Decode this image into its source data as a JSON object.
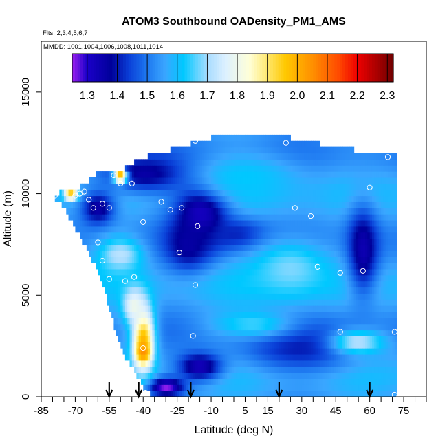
{
  "chart_data": {
    "type": "heatmap",
    "title": "ATOM3 Southbound OADensity_PM1_AMS",
    "flights_label": "Flts: 2,3,4,5,6,7",
    "mmdd_label": "MMDD: 1001,1004,1006,1008,1011,1014",
    "xlabel": "Latitude (deg N)",
    "ylabel": "Altitude (m)",
    "xlim": [
      -85,
      85
    ],
    "ylim": [
      0,
      17500
    ],
    "x_ticks": [
      -85,
      -70,
      -55,
      -40,
      -25,
      -10,
      5,
      15,
      30,
      45,
      60,
      75
    ],
    "x_tick_labels": [
      "-85",
      "-70",
      "-55",
      "-40",
      "-25",
      "-10",
      "5",
      "15",
      "30",
      "45",
      "60",
      "75"
    ],
    "y_ticks": [
      0,
      5000,
      10000,
      15000
    ],
    "y_tick_labels": [
      "0",
      "5000",
      "10000",
      "15000"
    ],
    "colorbar": {
      "range": [
        1.25,
        2.32
      ],
      "ticks": [
        1.3,
        1.4,
        1.5,
        1.6,
        1.7,
        1.8,
        1.9,
        2.0,
        2.1,
        2.2,
        2.3
      ],
      "tick_labels": [
        "1.3",
        "1.4",
        "1.5",
        "1.6",
        "1.7",
        "1.8",
        "1.9",
        "2.0",
        "2.1",
        "2.2",
        "2.3"
      ],
      "stops": [
        {
          "v": 1.25,
          "c": "#9A20F0"
        },
        {
          "v": 1.3,
          "c": "#1A00C8"
        },
        {
          "v": 1.38,
          "c": "#00009A"
        },
        {
          "v": 1.44,
          "c": "#0A40D8"
        },
        {
          "v": 1.5,
          "c": "#1E78F0"
        },
        {
          "v": 1.56,
          "c": "#3AA6FF"
        },
        {
          "v": 1.62,
          "c": "#00C8FF"
        },
        {
          "v": 1.7,
          "c": "#A8DCFF"
        },
        {
          "v": 1.76,
          "c": "#DCF0FF"
        },
        {
          "v": 1.84,
          "c": "#FFFFD8"
        },
        {
          "v": 1.9,
          "c": "#FFE870"
        },
        {
          "v": 1.96,
          "c": "#FFC800"
        },
        {
          "v": 2.05,
          "c": "#FF9000"
        },
        {
          "v": 2.14,
          "c": "#FF4800"
        },
        {
          "v": 2.2,
          "c": "#EE0000"
        },
        {
          "v": 2.32,
          "c": "#6E0000"
        }
      ]
    },
    "profile_markers_lat": [
      -55,
      -42,
      -19,
      20,
      60
    ],
    "altitude_envelope": [
      {
        "lat": -85,
        "top": 0
      },
      {
        "lat": -79,
        "top": 10000
      },
      {
        "lat": -70,
        "top": 10200
      },
      {
        "lat": -65,
        "top": 10600
      },
      {
        "lat": -60,
        "top": 11000
      },
      {
        "lat": -55,
        "top": 11100
      },
      {
        "lat": -50,
        "top": 11100
      },
      {
        "lat": -45,
        "top": 11500
      },
      {
        "lat": -40,
        "top": 11700
      },
      {
        "lat": -35,
        "top": 12000
      },
      {
        "lat": -25,
        "top": 12200
      },
      {
        "lat": -15,
        "top": 12600
      },
      {
        "lat": -5,
        "top": 12900
      },
      {
        "lat": 20,
        "top": 12900
      },
      {
        "lat": 30,
        "top": 12600
      },
      {
        "lat": 50,
        "top": 12200
      },
      {
        "lat": 65,
        "top": 11900
      },
      {
        "lat": 72,
        "top": 11900
      }
    ],
    "altitude_floor": [
      {
        "lat": -79,
        "bottom": 9800
      },
      {
        "lat": -75,
        "bottom": 9300
      },
      {
        "lat": -70,
        "bottom": 8300
      },
      {
        "lat": -65,
        "bottom": 7300
      },
      {
        "lat": -60,
        "bottom": 6200
      },
      {
        "lat": -56,
        "bottom": 4800
      },
      {
        "lat": -52,
        "bottom": 3200
      },
      {
        "lat": -48,
        "bottom": 1900
      },
      {
        "lat": -44,
        "bottom": 1300
      },
      {
        "lat": -40,
        "bottom": 500
      },
      {
        "lat": -36,
        "bottom": 0
      },
      {
        "lat": 72,
        "bottom": 0
      }
    ],
    "field_features": [
      {
        "kind": "background",
        "value": 1.55
      },
      {
        "kind": "blob",
        "lat": -38,
        "alt": 11000,
        "dlat": 20,
        "dalt": 900,
        "value": 1.35
      },
      {
        "kind": "blob",
        "lat": -14,
        "alt": 9100,
        "dlat": 12,
        "dalt": 1600,
        "value": 1.28
      },
      {
        "kind": "blob",
        "lat": -20,
        "alt": 7500,
        "dlat": 10,
        "dalt": 1200,
        "value": 1.36
      },
      {
        "kind": "blob",
        "lat": 2,
        "alt": 8000,
        "dlat": 14,
        "dalt": 800,
        "value": 1.4
      },
      {
        "kind": "blob",
        "lat": 57,
        "alt": 7200,
        "dlat": 7,
        "dalt": 2200,
        "value": 1.33
      },
      {
        "kind": "blob",
        "lat": 30,
        "alt": 2500,
        "dlat": 26,
        "dalt": 1200,
        "value": 1.4
      },
      {
        "kind": "blob",
        "lat": -15,
        "alt": 1500,
        "dlat": 10,
        "dalt": 700,
        "value": 1.32
      },
      {
        "kind": "blob",
        "lat": -30,
        "alt": 500,
        "dlat": 8,
        "dalt": 450,
        "value": 1.25
      },
      {
        "kind": "blob",
        "lat": -60,
        "alt": 9300,
        "dlat": 8,
        "dalt": 900,
        "value": 1.35
      },
      {
        "kind": "blob",
        "lat": 5,
        "alt": 10800,
        "dlat": 24,
        "dalt": 1200,
        "value": 1.62
      },
      {
        "kind": "blob",
        "lat": 25,
        "alt": 6300,
        "dlat": 18,
        "dalt": 1500,
        "value": 1.68
      },
      {
        "kind": "blob",
        "lat": -50,
        "alt": 7000,
        "dlat": 10,
        "dalt": 900,
        "value": 1.72
      },
      {
        "kind": "blob",
        "lat": -40,
        "alt": 2900,
        "dlat": 5,
        "dalt": 1600,
        "value": 1.98
      },
      {
        "kind": "blob",
        "lat": -40,
        "alt": 2200,
        "dlat": 3,
        "dalt": 500,
        "value": 2.05
      },
      {
        "kind": "blob",
        "lat": -44,
        "alt": 4500,
        "dlat": 5,
        "dalt": 900,
        "value": 1.8
      },
      {
        "kind": "blob",
        "lat": -50,
        "alt": 10850,
        "dlat": 3,
        "dalt": 300,
        "value": 2.05
      },
      {
        "kind": "blob",
        "lat": -72,
        "alt": 9950,
        "dlat": 3,
        "dalt": 250,
        "value": 2.02
      },
      {
        "kind": "blob",
        "lat": 55,
        "alt": 2700,
        "dlat": 12,
        "dalt": 600,
        "value": 1.72
      },
      {
        "kind": "blob",
        "lat": 8,
        "alt": 3600,
        "dlat": 18,
        "dalt": 700,
        "value": 1.65
      }
    ],
    "sample_points": [
      {
        "lat": -79,
        "alt": 9900
      },
      {
        "lat": -70,
        "alt": 9900
      },
      {
        "lat": -68,
        "alt": 10000
      },
      {
        "lat": -66,
        "alt": 10100
      },
      {
        "lat": -64,
        "alt": 9700
      },
      {
        "lat": -62,
        "alt": 9300
      },
      {
        "lat": -58,
        "alt": 9500
      },
      {
        "lat": -55,
        "alt": 9300
      },
      {
        "lat": -53,
        "alt": 10900
      },
      {
        "lat": -50,
        "alt": 10500
      },
      {
        "lat": -45,
        "alt": 10500
      },
      {
        "lat": -40,
        "alt": 8600
      },
      {
        "lat": -60,
        "alt": 7600
      },
      {
        "lat": -58,
        "alt": 6700
      },
      {
        "lat": -55,
        "alt": 5800
      },
      {
        "lat": -48,
        "alt": 5700
      },
      {
        "lat": -44,
        "alt": 5900
      },
      {
        "lat": -40,
        "alt": 2400
      },
      {
        "lat": -39,
        "alt": 200
      },
      {
        "lat": -32,
        "alt": 9600
      },
      {
        "lat": -28,
        "alt": 9200
      },
      {
        "lat": -23,
        "alt": 9300
      },
      {
        "lat": -24,
        "alt": 7100
      },
      {
        "lat": -17,
        "alt": 12600
      },
      {
        "lat": -16,
        "alt": 8400
      },
      {
        "lat": -17,
        "alt": 5500
      },
      {
        "lat": -18,
        "alt": 3000
      },
      {
        "lat": 23,
        "alt": 12500
      },
      {
        "lat": 27,
        "alt": 9300
      },
      {
        "lat": 34,
        "alt": 8900
      },
      {
        "lat": 37,
        "alt": 6400
      },
      {
        "lat": 47,
        "alt": 6100
      },
      {
        "lat": 47,
        "alt": 3200
      },
      {
        "lat": 57,
        "alt": 6200
      },
      {
        "lat": 60,
        "alt": 10300
      },
      {
        "lat": 68,
        "alt": 11800
      },
      {
        "lat": 71,
        "alt": 3200
      },
      {
        "lat": 71,
        "alt": 100
      }
    ]
  }
}
